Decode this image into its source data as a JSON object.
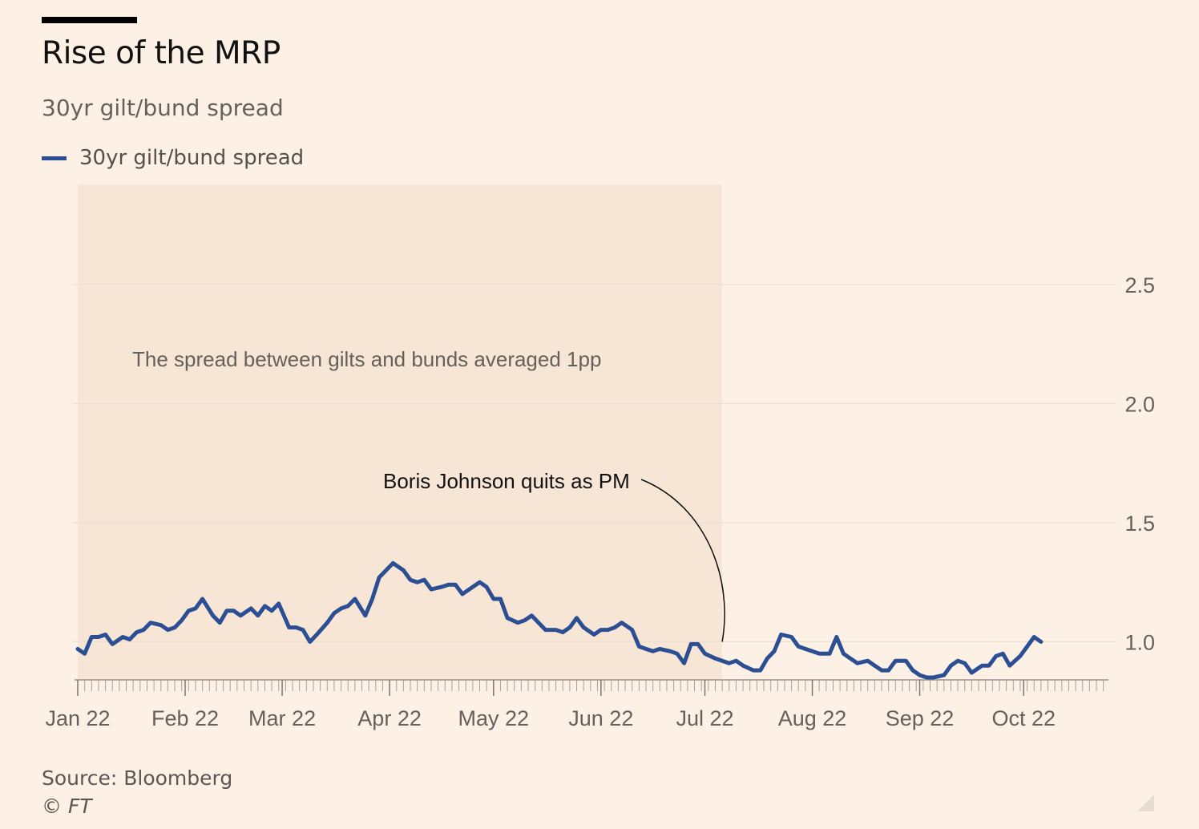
{
  "header": {
    "title": "Rise of the MRP",
    "subtitle": "30yr gilt/bund spread"
  },
  "legend": {
    "label": "30yr gilt/bund spread"
  },
  "footer": {
    "source": "Source: Bloomberg",
    "copyright": "© FT"
  },
  "colors": {
    "background": "#FDF1E6",
    "shade": "#F7E6D6",
    "line": "#2C4F93",
    "grid": "#EDE2D7",
    "axis_text": "#66605B"
  },
  "chart_data": {
    "type": "line",
    "title": "Rise of the MRP",
    "subtitle": "30yr gilt/bund spread",
    "y_axis_side": "right",
    "ylim": [
      0.84,
      2.92
    ],
    "yticks": [
      1.0,
      1.5,
      2.0,
      2.5
    ],
    "ytick_labels": [
      "1.0",
      "1.5",
      "2.0",
      "2.5"
    ],
    "xlim": [
      "2022-01-01",
      "2022-10-25"
    ],
    "xticks": [
      "2022-01-01",
      "2022-02-01",
      "2022-03-01",
      "2022-04-01",
      "2022-05-01",
      "2022-06-01",
      "2022-07-01",
      "2022-08-01",
      "2022-09-01",
      "2022-10-01"
    ],
    "xtick_labels": [
      "Jan 22",
      "Feb 22",
      "Mar 22",
      "Apr 22",
      "May 22",
      "Jun 22",
      "Jul 22",
      "Aug 22",
      "Sep 22",
      "Oct 22"
    ],
    "grid": true,
    "legend_position": "top-left",
    "series": [
      {
        "name": "30yr gilt/bund spread",
        "points": [
          [
            "2022-01-01",
            0.97
          ],
          [
            "2022-01-03",
            0.95
          ],
          [
            "2022-01-05",
            1.02
          ],
          [
            "2022-01-07",
            1.02
          ],
          [
            "2022-01-09",
            1.03
          ],
          [
            "2022-01-11",
            0.99
          ],
          [
            "2022-01-14",
            1.02
          ],
          [
            "2022-01-16",
            1.01
          ],
          [
            "2022-01-18",
            1.04
          ],
          [
            "2022-01-20",
            1.05
          ],
          [
            "2022-01-22",
            1.08
          ],
          [
            "2022-01-25",
            1.07
          ],
          [
            "2022-01-27",
            1.05
          ],
          [
            "2022-01-29",
            1.06
          ],
          [
            "2022-01-31",
            1.09
          ],
          [
            "2022-02-02",
            1.13
          ],
          [
            "2022-02-04",
            1.14
          ],
          [
            "2022-02-06",
            1.18
          ],
          [
            "2022-02-09",
            1.11
          ],
          [
            "2022-02-11",
            1.08
          ],
          [
            "2022-02-13",
            1.13
          ],
          [
            "2022-02-15",
            1.13
          ],
          [
            "2022-02-17",
            1.11
          ],
          [
            "2022-02-20",
            1.14
          ],
          [
            "2022-02-22",
            1.11
          ],
          [
            "2022-02-24",
            1.15
          ],
          [
            "2022-02-26",
            1.13
          ],
          [
            "2022-02-28",
            1.16
          ],
          [
            "2022-03-03",
            1.06
          ],
          [
            "2022-03-05",
            1.06
          ],
          [
            "2022-03-07",
            1.05
          ],
          [
            "2022-03-09",
            1.0
          ],
          [
            "2022-03-11",
            1.03
          ],
          [
            "2022-03-14",
            1.08
          ],
          [
            "2022-03-16",
            1.12
          ],
          [
            "2022-03-18",
            1.14
          ],
          [
            "2022-03-20",
            1.15
          ],
          [
            "2022-03-22",
            1.18
          ],
          [
            "2022-03-25",
            1.11
          ],
          [
            "2022-03-27",
            1.18
          ],
          [
            "2022-03-29",
            1.27
          ],
          [
            "2022-03-31",
            1.3
          ],
          [
            "2022-04-02",
            1.33
          ],
          [
            "2022-04-05",
            1.3
          ],
          [
            "2022-04-07",
            1.26
          ],
          [
            "2022-04-09",
            1.25
          ],
          [
            "2022-04-11",
            1.26
          ],
          [
            "2022-04-13",
            1.22
          ],
          [
            "2022-04-16",
            1.23
          ],
          [
            "2022-04-18",
            1.24
          ],
          [
            "2022-04-20",
            1.24
          ],
          [
            "2022-04-22",
            1.2
          ],
          [
            "2022-04-24",
            1.22
          ],
          [
            "2022-04-27",
            1.25
          ],
          [
            "2022-04-29",
            1.23
          ],
          [
            "2022-05-01",
            1.18
          ],
          [
            "2022-05-03",
            1.18
          ],
          [
            "2022-05-05",
            1.1
          ],
          [
            "2022-05-08",
            1.08
          ],
          [
            "2022-05-10",
            1.09
          ],
          [
            "2022-05-12",
            1.11
          ],
          [
            "2022-05-14",
            1.08
          ],
          [
            "2022-05-16",
            1.05
          ],
          [
            "2022-05-19",
            1.05
          ],
          [
            "2022-05-21",
            1.04
          ],
          [
            "2022-05-23",
            1.06
          ],
          [
            "2022-05-25",
            1.1
          ],
          [
            "2022-05-27",
            1.06
          ],
          [
            "2022-05-30",
            1.03
          ],
          [
            "2022-06-01",
            1.05
          ],
          [
            "2022-06-03",
            1.05
          ],
          [
            "2022-06-05",
            1.06
          ],
          [
            "2022-06-07",
            1.08
          ],
          [
            "2022-06-10",
            1.05
          ],
          [
            "2022-06-12",
            0.98
          ],
          [
            "2022-06-14",
            0.97
          ],
          [
            "2022-06-16",
            0.96
          ],
          [
            "2022-06-18",
            0.97
          ],
          [
            "2022-06-21",
            0.96
          ],
          [
            "2022-06-23",
            0.95
          ],
          [
            "2022-06-25",
            0.91
          ],
          [
            "2022-06-27",
            0.99
          ],
          [
            "2022-06-29",
            0.99
          ],
          [
            "2022-07-01",
            0.95
          ],
          [
            "2022-07-04",
            0.93
          ],
          [
            "2022-07-06",
            0.92
          ],
          [
            "2022-07-08",
            0.91
          ],
          [
            "2022-07-10",
            0.92
          ],
          [
            "2022-07-12",
            0.9
          ],
          [
            "2022-07-15",
            0.88
          ],
          [
            "2022-07-17",
            0.88
          ],
          [
            "2022-07-19",
            0.93
          ],
          [
            "2022-07-21",
            0.96
          ],
          [
            "2022-07-23",
            1.03
          ],
          [
            "2022-07-26",
            1.02
          ],
          [
            "2022-07-28",
            0.98
          ],
          [
            "2022-07-30",
            0.97
          ],
          [
            "2022-08-01",
            0.96
          ],
          [
            "2022-08-03",
            0.95
          ],
          [
            "2022-08-06",
            0.95
          ],
          [
            "2022-08-08",
            1.02
          ],
          [
            "2022-08-10",
            0.95
          ],
          [
            "2022-08-12",
            0.93
          ],
          [
            "2022-08-14",
            0.91
          ],
          [
            "2022-08-17",
            0.92
          ],
          [
            "2022-08-19",
            0.9
          ],
          [
            "2022-08-21",
            0.88
          ],
          [
            "2022-08-23",
            0.88
          ],
          [
            "2022-08-25",
            0.92
          ],
          [
            "2022-08-28",
            0.92
          ],
          [
            "2022-08-30",
            0.88
          ],
          [
            "2022-09-01",
            0.86
          ],
          [
            "2022-09-03",
            0.85
          ],
          [
            "2022-09-05",
            0.85
          ],
          [
            "2022-09-08",
            0.86
          ],
          [
            "2022-09-10",
            0.9
          ],
          [
            "2022-09-12",
            0.92
          ],
          [
            "2022-09-14",
            0.91
          ],
          [
            "2022-09-16",
            0.87
          ],
          [
            "2022-09-19",
            0.9
          ],
          [
            "2022-09-21",
            0.9
          ],
          [
            "2022-09-23",
            0.94
          ],
          [
            "2022-09-25",
            0.95
          ],
          [
            "2022-09-27",
            0.9
          ],
          [
            "2022-09-30",
            0.94
          ],
          [
            "2022-10-02",
            0.98
          ],
          [
            "2022-10-04",
            1.02
          ],
          [
            "2022-10-06",
            1.0
          ]
        ]
      }
    ]
  },
  "annotations": {
    "shaded_region_text": "The spread between gilts and bunds averaged 1pp",
    "event_label": "Boris Johnson quits as PM"
  }
}
